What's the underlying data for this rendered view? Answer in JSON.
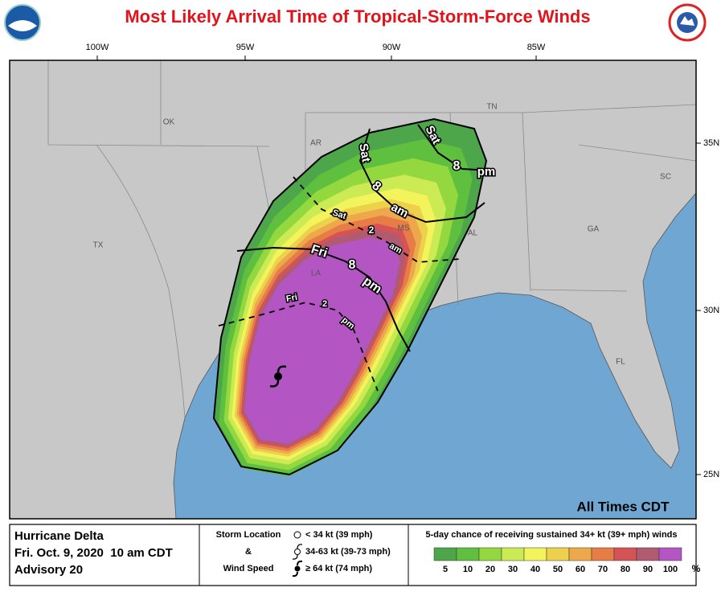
{
  "header": {
    "title": "Most Likely Arrival Time of Tropical-Storm-Force Winds"
  },
  "map": {
    "longitude_labels": [
      "100W",
      "95W",
      "90W",
      "85W"
    ],
    "latitude_labels": [
      "35N",
      "30N",
      "25N"
    ],
    "state_labels": [
      "OK",
      "AR",
      "TN",
      "SC",
      "TX",
      "MS",
      "AL",
      "GA",
      "LA",
      "FL"
    ],
    "arrival_labels": [
      [
        "Sat",
        "8",
        "pm"
      ],
      [
        "Sat",
        "8",
        "am"
      ],
      [
        "Sat",
        "2",
        "am"
      ],
      [
        "Fri",
        "8",
        "pm"
      ],
      [
        "Fri",
        "2",
        "pm"
      ]
    ],
    "time_zone_note": "All Times CDT"
  },
  "legend": {
    "storm_name": "Hurricane Delta",
    "issued": "Fri. Oct. 9, 2020  10 am CDT",
    "advisory": "Advisory 20",
    "storm_key_title": [
      "Storm Location",
      "&",
      "Wind Speed"
    ],
    "storm_key": [
      "< 34 kt (39 mph)",
      "34-63 kt (39-73 mph)",
      "≥ 64 kt (74 mph)"
    ],
    "probability_title": "5-day chance of receiving sustained 34+ kt (39+ mph) winds",
    "probability_scale": [
      {
        "value": 5,
        "color": "#4ea64a"
      },
      {
        "value": 10,
        "color": "#5fc03f"
      },
      {
        "value": 20,
        "color": "#93d83e"
      },
      {
        "value": 30,
        "color": "#cbea53"
      },
      {
        "value": 40,
        "color": "#f3f35c"
      },
      {
        "value": 50,
        "color": "#edd04c"
      },
      {
        "value": 60,
        "color": "#eca84b"
      },
      {
        "value": 70,
        "color": "#e77c46"
      },
      {
        "value": 80,
        "color": "#d45354"
      },
      {
        "value": 90,
        "color": "#b05b72"
      },
      {
        "value": 100,
        "color": "#b356c4"
      }
    ],
    "percent_sign": "%"
  }
}
